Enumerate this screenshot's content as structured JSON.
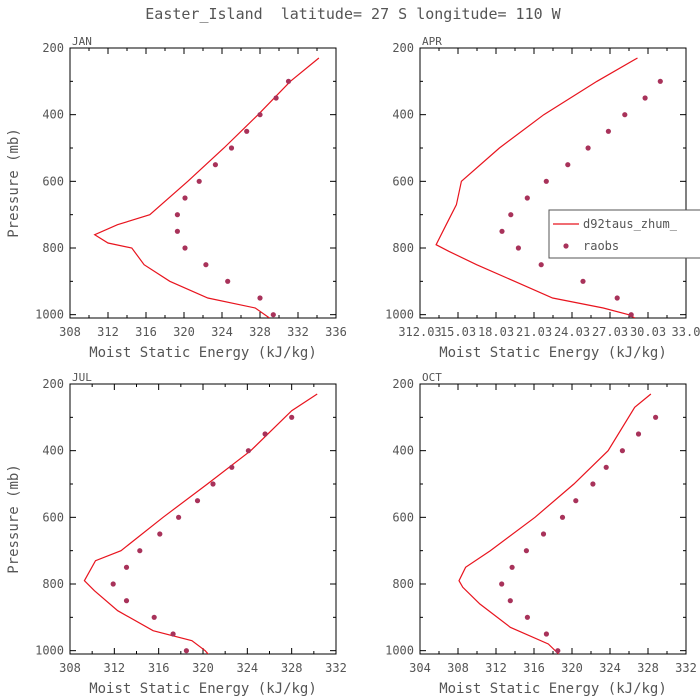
{
  "title": "Easter_Island  latitude= 27 S longitude= 110 W",
  "colors": {
    "model": "#e8141e",
    "raobs": "#a8325a",
    "text": "#555555",
    "frame": "#000000"
  },
  "legend": {
    "model_label": "d92taus_zhum_",
    "raobs_label": "raobs",
    "panel": 1
  },
  "chart_data": [
    {
      "type": "line",
      "panel_label": "JAN",
      "xlabel": "Moist Static Energy (kJ/kg)",
      "ylabel": "Pressure (mb)",
      "xlim": [
        308,
        336
      ],
      "ylim": [
        1010,
        200
      ],
      "xtick_labels": [
        "308",
        "312",
        "316",
        "320",
        "324",
        "328",
        "332",
        "336"
      ],
      "ytick_labels": [
        "200",
        "400",
        "600",
        "800",
        "1000"
      ],
      "series": [
        {
          "kind": "line",
          "x": [
            334.2,
            331.2,
            327.8,
            324.2,
            320.4,
            316.4,
            313.0,
            310.6,
            312.0,
            314.5,
            315.8,
            318.5,
            322.5,
            327.5,
            329.0
          ],
          "y": [
            230,
            300,
            400,
            500,
            600,
            700,
            730,
            760,
            785,
            800,
            850,
            900,
            950,
            980,
            1010
          ]
        },
        {
          "kind": "points",
          "x": [
            331.0,
            329.7,
            328.0,
            326.6,
            325.0,
            323.3,
            321.6,
            320.1,
            319.3,
            319.3,
            320.1,
            322.3,
            324.6,
            328.0,
            329.4
          ],
          "y": [
            300,
            350,
            400,
            450,
            500,
            550,
            600,
            650,
            700,
            750,
            800,
            850,
            900,
            950,
            1000
          ]
        }
      ]
    },
    {
      "type": "line",
      "panel_label": "APR",
      "xlabel": "Moist Static Energy (kJ/kg)",
      "ylabel": "",
      "xlim": [
        312.03,
        333.03
      ],
      "ylim": [
        1010,
        200
      ],
      "xtick_labels": [
        "312.03",
        "15.03",
        "18.03",
        "21.03",
        "24.03",
        "27.03",
        "30.03",
        "33.0"
      ],
      "series": [
        {
          "kind": "line",
          "x": [
            329.2,
            326.0,
            321.8,
            318.3,
            315.3,
            314.9,
            314.1,
            313.3,
            314.3,
            316.5,
            319.5,
            322.5,
            326.5,
            328.5,
            329.0
          ],
          "y": [
            230,
            300,
            400,
            500,
            600,
            670,
            730,
            790,
            810,
            850,
            900,
            950,
            980,
            1000,
            1010
          ]
        },
        {
          "kind": "points",
          "x": [
            331.0,
            329.8,
            328.2,
            326.9,
            325.3,
            323.7,
            322.0,
            320.5,
            319.2,
            318.5,
            319.8,
            321.6,
            324.9,
            327.6,
            328.7
          ],
          "y": [
            300,
            350,
            400,
            450,
            500,
            550,
            600,
            650,
            700,
            750,
            800,
            850,
            900,
            950,
            1000
          ]
        }
      ]
    },
    {
      "type": "line",
      "panel_label": "JUL",
      "xlabel": "Moist Static Energy (kJ/kg)",
      "ylabel": "Pressure (mb)",
      "xlim": [
        308,
        332
      ],
      "ylim": [
        1010,
        200
      ],
      "xtick_labels": [
        "308",
        "312",
        "316",
        "320",
        "324",
        "328",
        "332"
      ],
      "series": [
        {
          "kind": "line",
          "x": [
            330.3,
            328.0,
            324.3,
            320.4,
            316.4,
            312.6,
            310.3,
            309.3,
            310.2,
            312.3,
            315.5,
            319.0,
            320.2,
            321.0
          ],
          "y": [
            230,
            280,
            400,
            500,
            600,
            700,
            730,
            790,
            820,
            880,
            940,
            970,
            1000,
            1030
          ]
        },
        {
          "kind": "points",
          "x": [
            328.0,
            325.6,
            324.1,
            322.6,
            320.9,
            319.5,
            317.8,
            316.1,
            314.3,
            313.1,
            311.9,
            313.1,
            315.6,
            317.3,
            318.5
          ],
          "y": [
            300,
            350,
            400,
            450,
            500,
            550,
            600,
            650,
            700,
            750,
            800,
            850,
            900,
            950,
            1000
          ]
        }
      ]
    },
    {
      "type": "line",
      "panel_label": "OCT",
      "xlabel": "Moist Static Energy (kJ/kg)",
      "ylabel": "",
      "xlim": [
        304,
        332
      ],
      "ylim": [
        1010,
        200
      ],
      "xtick_labels": [
        "304",
        "308",
        "312",
        "316",
        "320",
        "324",
        "328",
        "332"
      ],
      "series": [
        {
          "kind": "line",
          "x": [
            328.3,
            326.6,
            323.8,
            320.2,
            316.1,
            311.4,
            308.8,
            308.1,
            308.5,
            310.3,
            313.5,
            317.5,
            318.6
          ],
          "y": [
            230,
            270,
            400,
            500,
            600,
            700,
            750,
            790,
            810,
            860,
            930,
            980,
            1010
          ]
        },
        {
          "kind": "points",
          "x": [
            328.8,
            327.0,
            325.3,
            323.6,
            322.2,
            320.4,
            319.0,
            317.0,
            315.2,
            313.7,
            312.6,
            313.5,
            315.3,
            317.3,
            318.5
          ],
          "y": [
            300,
            350,
            400,
            450,
            500,
            550,
            600,
            650,
            700,
            750,
            800,
            850,
            900,
            950,
            1000
          ]
        }
      ]
    }
  ]
}
